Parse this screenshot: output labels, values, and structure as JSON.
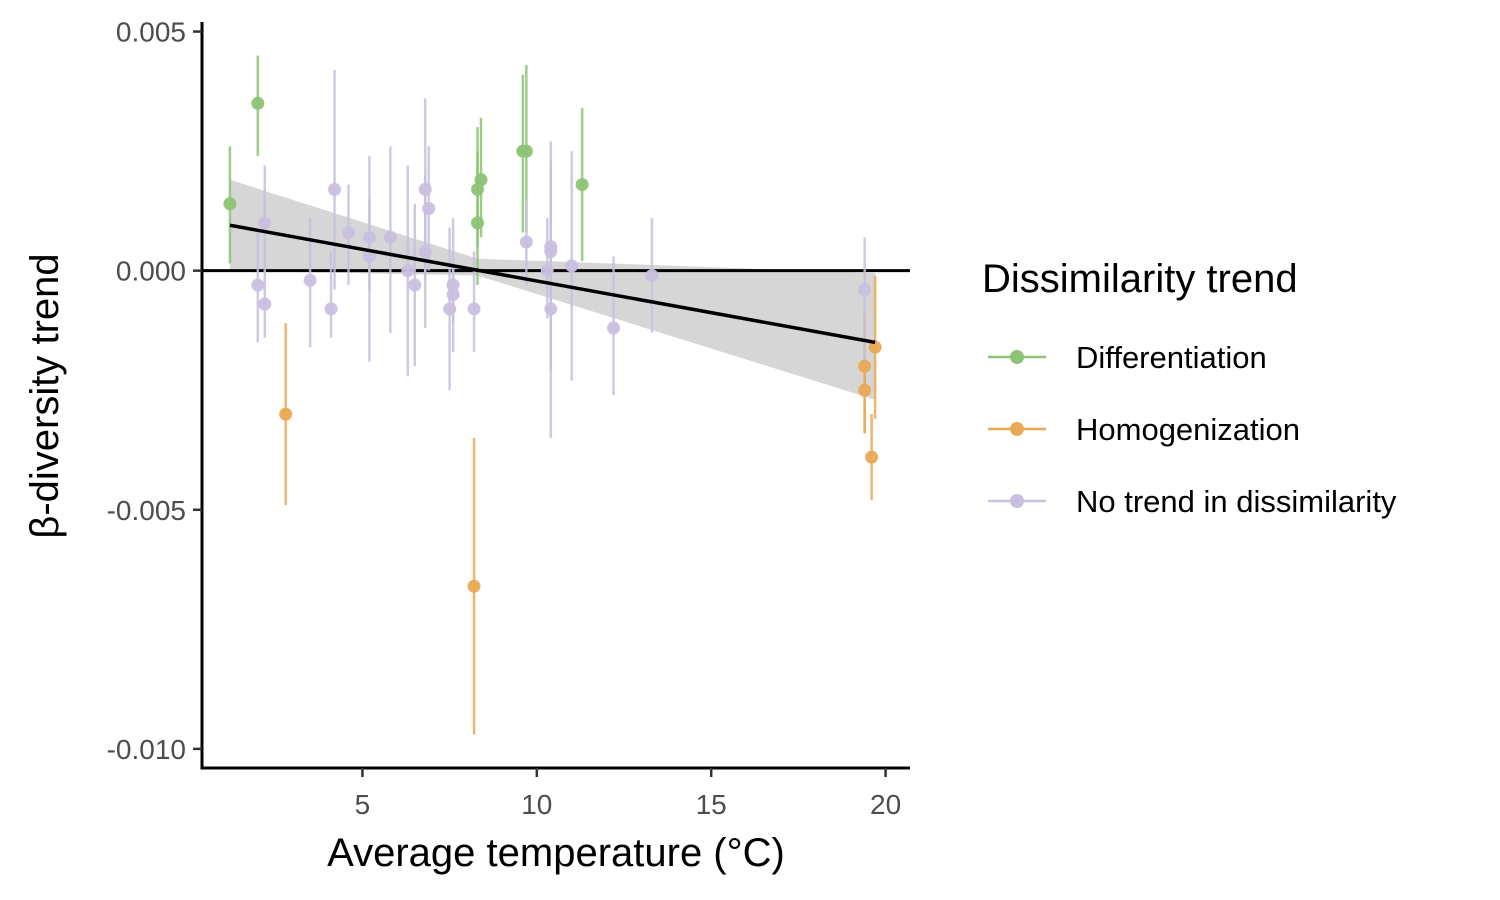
{
  "chart_data": {
    "type": "scatter",
    "xlabel": "Average temperature (°C)",
    "ylabel": "β-diversity trend",
    "xlim": [
      0.4,
      20.7
    ],
    "ylim": [
      -0.0104,
      0.0052
    ],
    "x_ticks": [
      5,
      10,
      15,
      20
    ],
    "x_tick_labels": [
      "5",
      "10",
      "15",
      "20"
    ],
    "y_ticks": [
      0.005,
      0.0,
      -0.005,
      -0.01
    ],
    "y_tick_labels": [
      "0.005",
      "0.000",
      "-0.005",
      "-0.010"
    ],
    "grid": false,
    "reference_line_y": 0,
    "legend": {
      "title": "Dissimilarity trend",
      "position": "right"
    },
    "colors": {
      "Differentiation": "#8cc474",
      "Homogenization": "#eaa954",
      "No trend in dissimilarity": "#c9bfdf",
      "fit_line": "#000000",
      "confidence_band": "#c8c8c8"
    },
    "series": [
      {
        "name": "Differentiation",
        "points": [
          {
            "x": 1.2,
            "y": 0.0014,
            "ylo": 0.00015,
            "yhi": 0.0026
          },
          {
            "x": 2.0,
            "y": 0.0035,
            "ylo": 0.0024,
            "yhi": 0.0045
          },
          {
            "x": 8.3,
            "y": 0.0017,
            "ylo": 0.0005,
            "yhi": 0.003
          },
          {
            "x": 8.3,
            "y": 0.001,
            "ylo": -0.0003,
            "yhi": 0.0025
          },
          {
            "x": 8.4,
            "y": 0.0019,
            "ylo": 0.0007,
            "yhi": 0.0032
          },
          {
            "x": 9.6,
            "y": 0.0025,
            "ylo": 0.0008,
            "yhi": 0.0041
          },
          {
            "x": 9.7,
            "y": 0.0025,
            "ylo": 0.0008,
            "yhi": 0.0043
          },
          {
            "x": 11.3,
            "y": 0.0018,
            "ylo": 0.0002,
            "yhi": 0.0034
          }
        ]
      },
      {
        "name": "Homogenization",
        "points": [
          {
            "x": 2.8,
            "y": -0.003,
            "ylo": -0.0049,
            "yhi": -0.0011
          },
          {
            "x": 8.2,
            "y": -0.0066,
            "ylo": -0.0097,
            "yhi": -0.0035
          },
          {
            "x": 19.4,
            "y": -0.002,
            "ylo": -0.0034,
            "yhi": -0.0009
          },
          {
            "x": 19.4,
            "y": -0.0025,
            "ylo": -0.0034,
            "yhi": -0.0013
          },
          {
            "x": 19.6,
            "y": -0.0039,
            "ylo": -0.0048,
            "yhi": -0.003
          },
          {
            "x": 19.7,
            "y": -0.0016,
            "ylo": -0.0031,
            "yhi": -0.0001
          }
        ]
      },
      {
        "name": "No trend in dissimilarity",
        "points": [
          {
            "x": 2.0,
            "y": -0.0003,
            "ylo": -0.0015,
            "yhi": 0.0009
          },
          {
            "x": 2.2,
            "y": 0.001,
            "ylo": -0.0001,
            "yhi": 0.0022
          },
          {
            "x": 2.2,
            "y": -0.0007,
            "ylo": -0.0014,
            "yhi": 0.0
          },
          {
            "x": 3.5,
            "y": -0.0002,
            "ylo": -0.0016,
            "yhi": 0.0011
          },
          {
            "x": 4.1,
            "y": -0.0008,
            "ylo": -0.0014,
            "yhi": 0.0004
          },
          {
            "x": 4.2,
            "y": 0.0017,
            "ylo": -0.0004,
            "yhi": 0.0042
          },
          {
            "x": 4.6,
            "y": 0.0008,
            "ylo": -0.0003,
            "yhi": 0.0018
          },
          {
            "x": 5.2,
            "y": 0.0003,
            "ylo": -0.0019,
            "yhi": 0.0024
          },
          {
            "x": 5.2,
            "y": 0.0007,
            "ylo": -0.0004,
            "yhi": 0.0015
          },
          {
            "x": 5.8,
            "y": 0.0007,
            "ylo": -0.0013,
            "yhi": 0.0026
          },
          {
            "x": 6.3,
            "y": 0.0,
            "ylo": -0.0022,
            "yhi": 0.0022
          },
          {
            "x": 6.5,
            "y": -0.0003,
            "ylo": -0.002,
            "yhi": 0.0014
          },
          {
            "x": 6.8,
            "y": 0.0004,
            "ylo": -0.0012,
            "yhi": 0.002
          },
          {
            "x": 6.8,
            "y": 0.0017,
            "ylo": -0.0002,
            "yhi": 0.0036
          },
          {
            "x": 6.9,
            "y": 0.0013,
            "ylo": 0.0,
            "yhi": 0.0026
          },
          {
            "x": 7.5,
            "y": -0.0008,
            "ylo": -0.0025,
            "yhi": 0.0009
          },
          {
            "x": 7.6,
            "y": -0.0005,
            "ylo": -0.0011,
            "yhi": 0.0001
          },
          {
            "x": 7.6,
            "y": -0.0003,
            "ylo": -0.0017,
            "yhi": 0.0011
          },
          {
            "x": 8.2,
            "y": -0.0008,
            "ylo": -0.0017,
            "yhi": 0.0004
          },
          {
            "x": 9.7,
            "y": 0.0006,
            "ylo": -0.0003,
            "yhi": 0.0015
          },
          {
            "x": 10.3,
            "y": 0.0,
            "ylo": -0.001,
            "yhi": 0.0011
          },
          {
            "x": 10.4,
            "y": 0.0005,
            "ylo": -0.0013,
            "yhi": 0.0023
          },
          {
            "x": 10.4,
            "y": 0.0004,
            "ylo": -0.0035,
            "yhi": 0.0027
          },
          {
            "x": 10.4,
            "y": -0.0008,
            "ylo": -0.0021,
            "yhi": 0.0019
          },
          {
            "x": 11.0,
            "y": 0.0001,
            "ylo": -0.0023,
            "yhi": 0.0025
          },
          {
            "x": 12.2,
            "y": -0.0012,
            "ylo": -0.0026,
            "yhi": 0.0003
          },
          {
            "x": 13.3,
            "y": -0.0001,
            "ylo": -0.0013,
            "yhi": 0.0011
          },
          {
            "x": 19.4,
            "y": -0.0004,
            "ylo": -0.002,
            "yhi": 0.0007
          }
        ]
      }
    ],
    "fit_line": {
      "x": [
        1.2,
        19.7
      ],
      "y": [
        0.00095,
        -0.0015
      ]
    },
    "confidence_band": {
      "x": [
        1.2,
        8.3,
        19.7
      ],
      "lower": [
        0.0,
        -0.0001,
        -0.0027
      ],
      "upper": [
        0.0019,
        0.00025,
        -5e-05
      ]
    }
  }
}
